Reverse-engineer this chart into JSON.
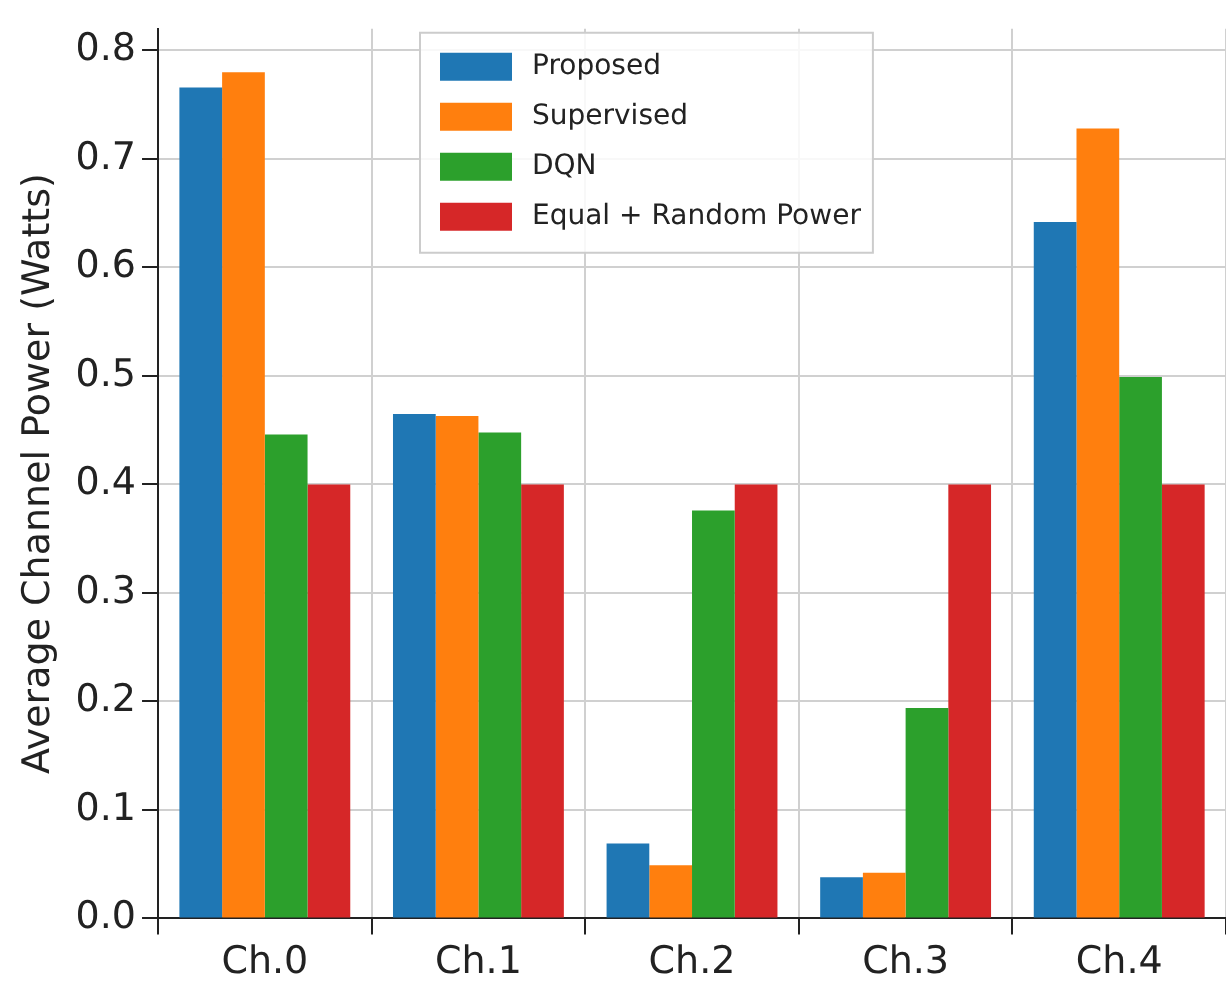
{
  "chart_data": {
    "type": "bar",
    "ylabel": "Average Channel Power (Watts)",
    "categories": [
      "Ch.0",
      "Ch.1",
      "Ch.2",
      "Ch.3",
      "Ch.4"
    ],
    "series": [
      {
        "name": "Proposed",
        "color": "#1f77b4",
        "values": [
          0.766,
          0.465,
          0.069,
          0.038,
          0.642
        ]
      },
      {
        "name": "Supervised",
        "color": "#ff7f0e",
        "values": [
          0.78,
          0.463,
          0.049,
          0.042,
          0.728
        ]
      },
      {
        "name": "DQN",
        "color": "#2ca02c",
        "values": [
          0.446,
          0.448,
          0.376,
          0.194,
          0.499
        ]
      },
      {
        "name": "Equal + Random Power",
        "color": "#d62728",
        "values": [
          0.4,
          0.4,
          0.4,
          0.4,
          0.4
        ]
      }
    ],
    "ylim": [
      0,
      0.82
    ],
    "yticks": [
      {
        "value": 0,
        "label": "0.0"
      },
      0.1,
      0.2,
      0.3,
      0.4,
      0.5,
      0.6,
      0.7,
      0.8
    ],
    "grid": true,
    "legend": "top"
  }
}
